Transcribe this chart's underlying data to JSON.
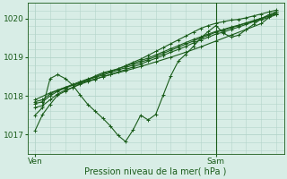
{
  "xlabel": "Pression niveau de la mer( hPa )",
  "background_color": "#d8ede6",
  "grid_color": "#b4d4ca",
  "line_color": "#1a5c1a",
  "ylim": [
    1016.5,
    1020.4
  ],
  "xlim": [
    -1,
    33
  ],
  "yticks": [
    1017,
    1018,
    1019,
    1020
  ],
  "xtick_positions": [
    0,
    24
  ],
  "xtick_labels": [
    "Ven",
    "Sam"
  ],
  "vline_x": 24,
  "series": [
    [
      0,
      1017.7,
      1,
      1017.75,
      2,
      1017.9,
      3,
      1018.05,
      4,
      1018.15,
      5,
      1018.22,
      6,
      1018.3,
      7,
      1018.37,
      8,
      1018.43,
      9,
      1018.5,
      10,
      1018.55,
      11,
      1018.62,
      12,
      1018.68,
      13,
      1018.75,
      14,
      1018.82,
      15,
      1018.9,
      16,
      1018.97,
      17,
      1019.05,
      18,
      1019.13,
      19,
      1019.2,
      20,
      1019.28,
      21,
      1019.37,
      22,
      1019.45,
      23,
      1019.52,
      24,
      1019.6,
      25,
      1019.65,
      26,
      1019.72,
      27,
      1019.78,
      28,
      1019.85,
      29,
      1019.92,
      30,
      1019.97,
      31,
      1020.03,
      32,
      1020.1
    ],
    [
      0,
      1017.8,
      1,
      1017.85,
      2,
      1018.0,
      3,
      1018.12,
      4,
      1018.2,
      5,
      1018.28,
      6,
      1018.35,
      7,
      1018.42,
      8,
      1018.48,
      9,
      1018.54,
      10,
      1018.6,
      11,
      1018.67,
      12,
      1018.73,
      13,
      1018.8,
      14,
      1018.87,
      15,
      1018.94,
      16,
      1019.02,
      17,
      1019.1,
      18,
      1019.18,
      19,
      1019.26,
      20,
      1019.34,
      21,
      1019.42,
      22,
      1019.5,
      23,
      1019.57,
      24,
      1019.65,
      25,
      1019.7,
      26,
      1019.76,
      27,
      1019.82,
      28,
      1019.88,
      29,
      1019.94,
      30,
      1020.0,
      31,
      1020.06,
      32,
      1020.12
    ],
    [
      0,
      1017.85,
      1,
      1017.9,
      2,
      1018.05,
      3,
      1018.15,
      4,
      1018.22,
      5,
      1018.3,
      6,
      1018.37,
      7,
      1018.44,
      8,
      1018.5,
      9,
      1018.57,
      10,
      1018.63,
      11,
      1018.7,
      12,
      1018.77,
      13,
      1018.84,
      14,
      1018.91,
      15,
      1018.98,
      16,
      1019.06,
      17,
      1019.14,
      18,
      1019.22,
      19,
      1019.3,
      20,
      1019.38,
      21,
      1019.46,
      22,
      1019.53,
      23,
      1019.6,
      24,
      1019.67,
      25,
      1019.72,
      26,
      1019.78,
      27,
      1019.83,
      28,
      1019.89,
      29,
      1019.95,
      30,
      1020.01,
      31,
      1020.07,
      32,
      1020.14
    ],
    [
      0,
      1017.9,
      2,
      1018.08,
      4,
      1018.22,
      6,
      1018.33,
      8,
      1018.44,
      10,
      1018.55,
      12,
      1018.65,
      14,
      1018.76,
      16,
      1018.88,
      18,
      1019.0,
      20,
      1019.13,
      22,
      1019.27,
      24,
      1019.42,
      26,
      1019.57,
      28,
      1019.72,
      30,
      1019.87,
      32,
      1020.18
    ],
    [
      0,
      1017.5,
      1,
      1017.7,
      2,
      1018.45,
      3,
      1018.55,
      4,
      1018.45,
      5,
      1018.28,
      6,
      1018.02,
      7,
      1017.78,
      8,
      1017.6,
      9,
      1017.42,
      10,
      1017.22,
      11,
      1016.98,
      12,
      1016.82,
      13,
      1017.12,
      14,
      1017.5,
      15,
      1017.38,
      16,
      1017.52,
      17,
      1018.02,
      18,
      1018.52,
      19,
      1018.9,
      20,
      1019.08,
      21,
      1019.28,
      22,
      1019.5,
      23,
      1019.67,
      24,
      1019.82,
      25,
      1019.62,
      26,
      1019.52,
      27,
      1019.57,
      28,
      1019.72,
      29,
      1019.85,
      30,
      1020.0,
      31,
      1020.1,
      32,
      1020.18
    ],
    [
      0,
      1017.1,
      1,
      1017.52,
      2,
      1017.78,
      3,
      1018.02,
      4,
      1018.12,
      5,
      1018.22,
      6,
      1018.32,
      7,
      1018.42,
      8,
      1018.52,
      9,
      1018.6,
      10,
      1018.65,
      11,
      1018.7,
      12,
      1018.78,
      13,
      1018.87,
      14,
      1018.95,
      15,
      1019.05,
      16,
      1019.15,
      17,
      1019.25,
      18,
      1019.35,
      19,
      1019.45,
      20,
      1019.55,
      21,
      1019.65,
      22,
      1019.75,
      23,
      1019.82,
      24,
      1019.88,
      25,
      1019.92,
      26,
      1019.96,
      27,
      1019.98,
      28,
      1020.02,
      29,
      1020.07,
      30,
      1020.12,
      31,
      1020.17,
      32,
      1020.22
    ]
  ]
}
